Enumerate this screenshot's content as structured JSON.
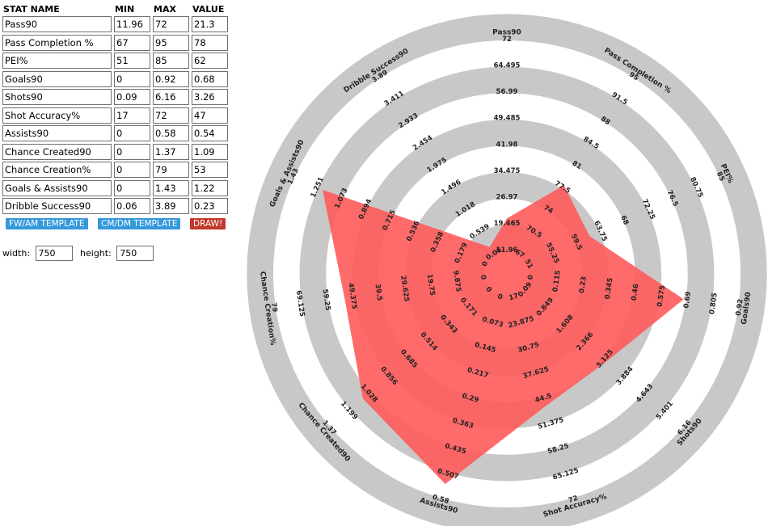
{
  "table": {
    "headers": {
      "name": "STAT NAME",
      "min": "MIN",
      "max": "MAX",
      "value": "VALUE"
    },
    "rows": [
      {
        "name": "Pass90",
        "min": "11.96",
        "max": "72",
        "value": "21.3"
      },
      {
        "name": "Pass Completion %",
        "min": "67",
        "max": "95",
        "value": "78"
      },
      {
        "name": "PEI%",
        "min": "51",
        "max": "85",
        "value": "62"
      },
      {
        "name": "Goals90",
        "min": "0",
        "max": "0.92",
        "value": "0.68"
      },
      {
        "name": "Shots90",
        "min": "0.09",
        "max": "6.16",
        "value": "3.26"
      },
      {
        "name": "Shot Accuracy%",
        "min": "17",
        "max": "72",
        "value": "47"
      },
      {
        "name": "Assists90",
        "min": "0",
        "max": "0.58",
        "value": "0.54"
      },
      {
        "name": "Chance Created90",
        "min": "0",
        "max": "1.37",
        "value": "1.09"
      },
      {
        "name": "Chance Creation%",
        "min": "0",
        "max": "79",
        "value": "53"
      },
      {
        "name": "Goals & Assists90",
        "min": "0",
        "max": "1.43",
        "value": "1.22"
      },
      {
        "name": "Dribble Success90",
        "min": "0.06",
        "max": "3.89",
        "value": "0.23"
      }
    ]
  },
  "buttons": {
    "fw_template": "FW/AM TEMPLATE",
    "cm_template": "CM/DM TEMPLATE",
    "draw": "DRAW!"
  },
  "size": {
    "width_label": "width:",
    "width_value": "750",
    "height_label": "height:",
    "height_value": "750"
  },
  "colors": {
    "ring": "#c8c8c8",
    "fill": "#ff5a5a",
    "button_blue": "#3498db",
    "button_red": "#c0392b"
  },
  "chart_data": {
    "type": "radar",
    "rings": 5,
    "axes": [
      {
        "name": "Pass90",
        "min": 11.96,
        "max": 72,
        "value": 21.3,
        "ticks": [
          "11.96",
          "19.465",
          "26.97",
          "34.475",
          "41.98",
          "49.485",
          "56.99",
          "64.495",
          "72"
        ]
      },
      {
        "name": "Pass Completion %",
        "min": 67,
        "max": 95,
        "value": 78,
        "ticks": [
          "67",
          "70.5",
          "74",
          "77.5",
          "81",
          "84.5",
          "88",
          "91.5",
          "95"
        ]
      },
      {
        "name": "PEI%",
        "min": 51,
        "max": 85,
        "value": 62,
        "ticks": [
          "51",
          "55.25",
          "59.5",
          "63.75",
          "68",
          "72.25",
          "76.5",
          "80.75",
          "85"
        ]
      },
      {
        "name": "Goals90",
        "min": 0,
        "max": 0.92,
        "value": 0.68,
        "ticks": [
          "0",
          "0.115",
          "0.23",
          "0.345",
          "0.46",
          "0.575",
          "0.69",
          "0.805",
          "0.92"
        ]
      },
      {
        "name": "Shots90",
        "min": 0.09,
        "max": 6.16,
        "value": 3.26,
        "ticks": [
          "0.09",
          "0.849",
          "1.608",
          "2.366",
          "3.125",
          "3.884",
          "4.643",
          "5.401",
          "6.16"
        ]
      },
      {
        "name": "Shot Accuracy%",
        "min": 17,
        "max": 72,
        "value": 47,
        "ticks": [
          "17",
          "23.875",
          "30.75",
          "37.625",
          "44.5",
          "51.375",
          "58.25",
          "65.125",
          "72"
        ]
      },
      {
        "name": "Assists90",
        "min": 0,
        "max": 0.58,
        "value": 0.54,
        "ticks": [
          "0",
          "0.073",
          "0.145",
          "0.217",
          "0.29",
          "0.363",
          "0.435",
          "0.507",
          "0.58"
        ]
      },
      {
        "name": "Chance Created90",
        "min": 0,
        "max": 1.37,
        "value": 1.09,
        "ticks": [
          "0",
          "0.171",
          "0.343",
          "0.514",
          "0.685",
          "0.856",
          "1.028",
          "1.199",
          "1.37"
        ]
      },
      {
        "name": "Chance Creation%",
        "min": 0,
        "max": 79,
        "value": 53,
        "ticks": [
          "0",
          "9.875",
          "19.75",
          "29.625",
          "39.5",
          "49.375",
          "59.25",
          "69.125",
          "79"
        ]
      },
      {
        "name": "Goals & Assists90",
        "min": 0,
        "max": 1.43,
        "value": 1.22,
        "ticks": [
          "0",
          "0.179",
          "0.358",
          "0.536",
          "0.715",
          "0.894",
          "1.073",
          "1.251",
          "1.43"
        ]
      },
      {
        "name": "Dribble Success90",
        "min": 0.06,
        "max": 3.89,
        "value": 0.23,
        "ticks": [
          "0.06",
          "0.539",
          "1.018",
          "1.496",
          "1.975",
          "2.454",
          "2.933",
          "3.411",
          "3.89"
        ]
      }
    ]
  }
}
